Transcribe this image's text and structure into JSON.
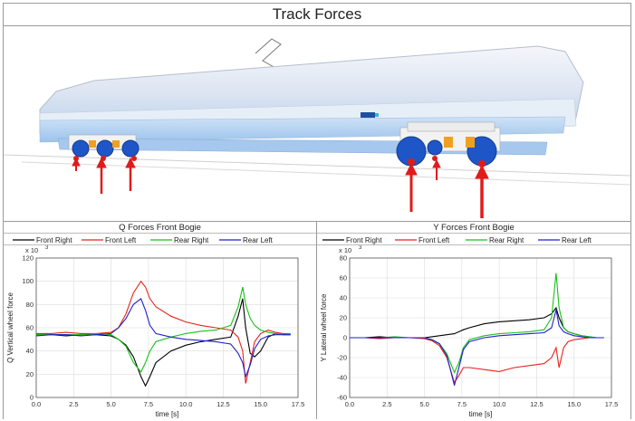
{
  "window": {
    "title": "Track Forces"
  },
  "colors": {
    "front_right": "#000000",
    "front_left": "#e8231b",
    "rear_right": "#19c019",
    "rear_left": "#1f1fd0"
  },
  "scene": {
    "description_icon": "train-3d-model-icon",
    "force_arrow_color": "#e01b1b"
  },
  "legend": {
    "front_right": "Front Right",
    "front_left": "Front Left",
    "rear_right": "Rear Right",
    "rear_left": "Rear Left"
  },
  "charts": {
    "q": {
      "panel_title": "Q Forces Front Bogie",
      "exponent": "x 10",
      "exponent_power": "3",
      "ylabel": "Q Vertical wheel force",
      "xlabel": "time [s]",
      "xticks": [
        "0.0",
        "2.5",
        "5.0",
        "7.5",
        "10.0",
        "12.5",
        "15.0",
        "17.5"
      ],
      "yticks": [
        "0",
        "20",
        "40",
        "60",
        "80",
        "100",
        "120"
      ]
    },
    "y": {
      "panel_title": "Y Forces Front Bogie",
      "exponent": "x 10",
      "exponent_power": "3",
      "ylabel": "Y Lateral wheel force",
      "xlabel": "time [s]",
      "xticks": [
        "0.0",
        "2.5",
        "5.0",
        "7.5",
        "10.0",
        "12.5",
        "15.0",
        "17.5"
      ],
      "yticks": [
        "-60",
        "-40",
        "-20",
        "0",
        "20",
        "40",
        "60",
        "80"
      ]
    }
  },
  "chart_data": [
    {
      "type": "line",
      "title": "Q Forces Front Bogie",
      "xlabel": "time [s]",
      "ylabel": "Q Vertical wheel force",
      "xlim": [
        0,
        17.5
      ],
      "ylim": [
        0,
        120
      ],
      "y_multiplier": "x 10^3",
      "grid": true,
      "legend_position": "top",
      "series": [
        {
          "name": "Front Right",
          "x": [
            0,
            1,
            2,
            3,
            4,
            5,
            5.5,
            6,
            6.5,
            7,
            7.3,
            7.6,
            8,
            9,
            10,
            11,
            12,
            13,
            13.5,
            13.8,
            14,
            14.3,
            14.6,
            15,
            15.5,
            16,
            16.5,
            17
          ],
          "y": [
            54,
            54,
            53,
            54,
            54,
            53,
            50,
            45,
            35,
            18,
            10,
            18,
            30,
            40,
            45,
            48,
            50,
            52,
            70,
            85,
            60,
            38,
            35,
            40,
            52,
            55,
            54,
            54
          ]
        },
        {
          "name": "Front Left",
          "x": [
            0,
            1,
            2,
            3,
            4,
            5,
            5.5,
            6,
            6.5,
            7,
            7.3,
            7.6,
            8,
            9,
            10,
            11,
            12,
            13,
            13.5,
            13.8,
            14,
            14.3,
            14.6,
            15,
            15.5,
            16,
            16.5,
            17
          ],
          "y": [
            55,
            55,
            56,
            55,
            55,
            56,
            60,
            72,
            90,
            100,
            95,
            85,
            78,
            70,
            65,
            62,
            60,
            58,
            52,
            40,
            12,
            30,
            48,
            55,
            58,
            56,
            55,
            55
          ]
        },
        {
          "name": "Rear Right",
          "x": [
            0,
            1,
            2,
            3,
            4,
            5,
            5.5,
            6,
            6.5,
            7,
            7.3,
            7.6,
            8,
            9,
            10,
            11,
            12,
            13,
            13.5,
            13.8,
            14,
            14.3,
            14.6,
            15,
            15.5,
            16,
            16.5,
            17
          ],
          "y": [
            54,
            54,
            54,
            54,
            55,
            54,
            50,
            44,
            30,
            22,
            30,
            40,
            48,
            52,
            55,
            57,
            58,
            62,
            78,
            95,
            80,
            68,
            62,
            58,
            56,
            55,
            54,
            55
          ]
        },
        {
          "name": "Rear Left",
          "x": [
            0,
            1,
            2,
            3,
            4,
            5,
            5.5,
            6,
            6.5,
            7,
            7.3,
            7.6,
            8,
            9,
            10,
            11,
            12,
            13,
            13.5,
            13.8,
            14,
            14.3,
            14.6,
            15,
            15.5,
            16,
            16.5,
            17
          ],
          "y": [
            53,
            54,
            54,
            53,
            54,
            55,
            60,
            68,
            80,
            85,
            75,
            62,
            55,
            52,
            50,
            49,
            48,
            46,
            38,
            30,
            18,
            28,
            42,
            50,
            53,
            54,
            54,
            54
          ]
        }
      ]
    },
    {
      "type": "line",
      "title": "Y Forces Front Bogie",
      "xlabel": "time [s]",
      "ylabel": "Y Lateral wheel force",
      "xlim": [
        0,
        17.5
      ],
      "ylim": [
        -60,
        80
      ],
      "y_multiplier": "x 10^3",
      "grid": true,
      "legend_position": "top",
      "series": [
        {
          "name": "Front Right",
          "x": [
            0,
            1,
            2,
            3,
            4,
            5,
            5.5,
            6,
            6.5,
            7,
            7.3,
            7.6,
            8,
            9,
            10,
            11,
            12,
            13,
            13.5,
            13.8,
            14,
            14.3,
            14.6,
            15,
            15.5,
            16,
            16.5,
            17
          ],
          "y": [
            0,
            0,
            1,
            0,
            0,
            0,
            1,
            2,
            3,
            4,
            6,
            8,
            10,
            14,
            16,
            17,
            18,
            20,
            24,
            30,
            20,
            10,
            6,
            4,
            2,
            1,
            0,
            0
          ]
        },
        {
          "name": "Front Left",
          "x": [
            0,
            1,
            2,
            3,
            4,
            5,
            5.5,
            6,
            6.5,
            7,
            7.3,
            7.6,
            8,
            9,
            10,
            11,
            12,
            13,
            13.5,
            13.8,
            14,
            14.3,
            14.6,
            15,
            15.5,
            16,
            16.5,
            17
          ],
          "y": [
            0,
            0,
            -1,
            0,
            0,
            -1,
            -3,
            -8,
            -20,
            -45,
            -38,
            -30,
            -30,
            -32,
            -34,
            -30,
            -28,
            -26,
            -20,
            -10,
            -30,
            -10,
            -4,
            -2,
            -1,
            0,
            0,
            0
          ]
        },
        {
          "name": "Rear Right",
          "x": [
            0,
            1,
            2,
            3,
            4,
            5,
            5.5,
            6,
            6.5,
            7,
            7.3,
            7.6,
            8,
            9,
            10,
            11,
            12,
            13,
            13.5,
            13.8,
            14,
            14.3,
            14.6,
            15,
            15.5,
            16,
            16.5,
            17
          ],
          "y": [
            0,
            0,
            0,
            1,
            0,
            0,
            -2,
            -6,
            -16,
            -35,
            -25,
            -10,
            -2,
            2,
            4,
            5,
            6,
            8,
            20,
            65,
            30,
            10,
            6,
            4,
            2,
            1,
            0,
            0
          ]
        },
        {
          "name": "Rear Left",
          "x": [
            0,
            1,
            2,
            3,
            4,
            5,
            5.5,
            6,
            6.5,
            7,
            7.3,
            7.6,
            8,
            9,
            10,
            11,
            12,
            13,
            13.5,
            13.8,
            14,
            14.3,
            14.6,
            15,
            15.5,
            16,
            16.5,
            17
          ],
          "y": [
            0,
            0,
            0,
            0,
            0,
            0,
            -2,
            -6,
            -18,
            -48,
            -30,
            -12,
            -4,
            0,
            2,
            3,
            4,
            5,
            10,
            28,
            12,
            6,
            4,
            2,
            1,
            0,
            0,
            0
          ]
        }
      ]
    }
  ]
}
